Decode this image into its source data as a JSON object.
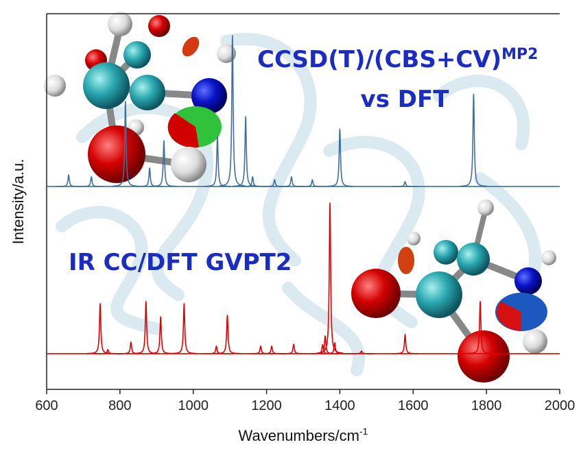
{
  "chart_data": {
    "type": "spectrum",
    "xlabel": "Wavenumbers/cm",
    "xlabel_sup": "-1",
    "ylabel": "Intensity/a.u.",
    "annotations": [
      {
        "text": "CCSD(T)/(CBS+CV)",
        "sup": "MP2"
      },
      {
        "text": "vs DFT"
      },
      {
        "text": "IR CC/DFT GVPT2"
      }
    ],
    "xlim": [
      600,
      2000
    ],
    "xticks": [
      600,
      800,
      1000,
      1200,
      1400,
      1600,
      1800,
      2000
    ],
    "ylim": [
      0,
      100
    ],
    "series": [
      {
        "color": "#3d6e9e",
        "baseline": 54.0,
        "x": [
          660,
          722,
          815,
          881,
          920,
          1066,
          1107,
          1143,
          1162,
          1222,
          1268,
          1325,
          1400,
          1578,
          1765
        ],
        "values": [
          57.1,
          56.6,
          76.6,
          58.9,
          66.2,
          67.2,
          94.2,
          72.6,
          56.6,
          55.8,
          56.6,
          55.8,
          69.3,
          55.3,
          78.6
        ]
      },
      {
        "color": "#e00000",
        "baseline": 9.5,
        "x": [
          746,
          767,
          830,
          871,
          911,
          975,
          1063,
          1093,
          1184,
          1214,
          1274,
          1353,
          1360,
          1373,
          1386,
          1459,
          1578,
          1783
        ],
        "values": [
          22.8,
          10.6,
          12.6,
          23.4,
          19.3,
          22.8,
          11.5,
          19.7,
          11.5,
          11.5,
          12.0,
          11.9,
          14.2,
          49.6,
          12.4,
          10.2,
          14.6,
          23.4
        ]
      }
    ]
  }
}
